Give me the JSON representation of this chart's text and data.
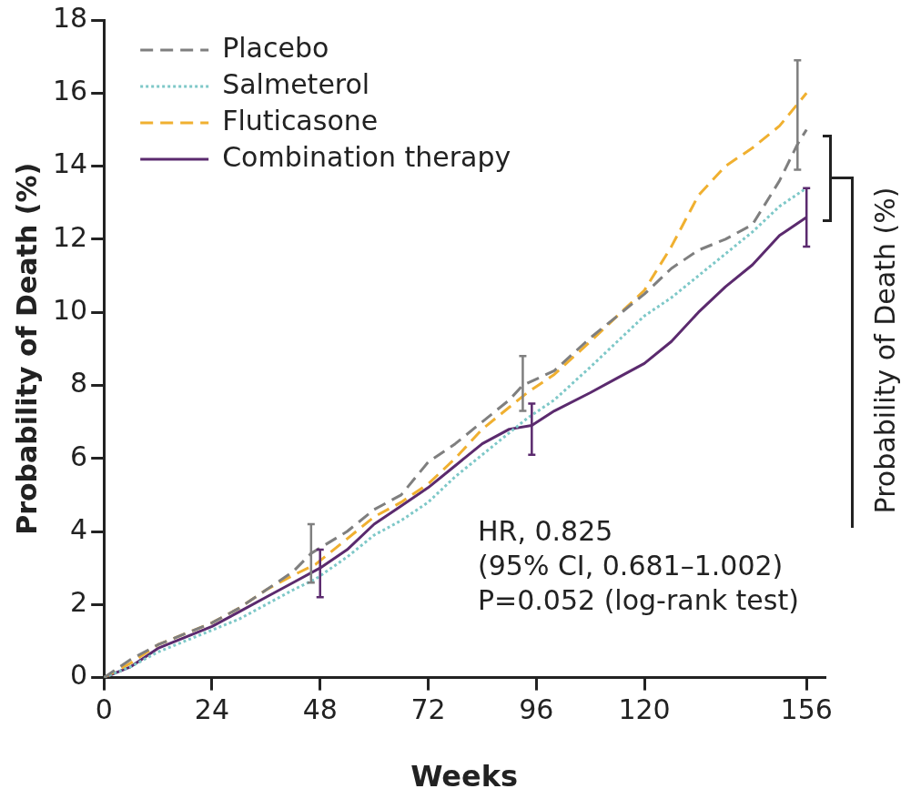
{
  "chart_data": {
    "type": "line",
    "xlabel": "Weeks",
    "ylabel": "Probability of Death (%)",
    "xlim": [
      0,
      160
    ],
    "xticks": [
      0,
      24,
      48,
      72,
      96,
      120,
      156
    ],
    "ylim": [
      0,
      18
    ],
    "yticks": [
      0,
      2,
      4,
      6,
      8,
      10,
      12,
      14,
      16,
      18
    ],
    "grid": false,
    "legend": "top left",
    "marker": "none",
    "annotations": [
      "HR, 0.825",
      "(95% CI, 0.681–1.002)",
      "P=0.052 (log-rank test)",
      "Probability of Death (%)"
    ],
    "series": [
      {
        "name": "Placebo",
        "color": "#7f7f7f",
        "line_style": "dashed",
        "x": [
          0,
          6,
          12,
          18,
          24,
          30,
          36,
          42,
          46,
          54,
          60,
          66,
          72,
          78,
          84,
          90,
          93,
          100,
          108,
          114,
          120,
          126,
          132,
          138,
          144,
          150,
          154,
          156
        ],
        "values": [
          0,
          0.5,
          0.9,
          1.2,
          1.5,
          1.9,
          2.4,
          2.9,
          3.4,
          4.0,
          4.6,
          5.0,
          5.9,
          6.4,
          7.0,
          7.6,
          8.0,
          8.4,
          9.3,
          9.9,
          10.5,
          11.2,
          11.7,
          12.0,
          12.4,
          13.6,
          14.6,
          15.0
        ],
        "errors": [
          null,
          null,
          null,
          null,
          null,
          null,
          null,
          null,
          [
            2.6,
            4.2
          ],
          null,
          null,
          null,
          null,
          null,
          null,
          null,
          [
            7.3,
            8.8
          ],
          null,
          null,
          null,
          null,
          null,
          null,
          null,
          null,
          null,
          [
            13.9,
            16.9
          ],
          null
        ]
      },
      {
        "name": "Salmeterol",
        "color": "#7ec8c8",
        "line_style": "dotted",
        "x": [
          0,
          6,
          12,
          18,
          24,
          30,
          36,
          42,
          47,
          54,
          60,
          66,
          72,
          78,
          84,
          90,
          94,
          100,
          108,
          114,
          120,
          126,
          132,
          138,
          144,
          150,
          156
        ],
        "values": [
          0,
          0.3,
          0.7,
          1.0,
          1.3,
          1.6,
          2.0,
          2.4,
          2.7,
          3.3,
          3.9,
          4.3,
          4.8,
          5.5,
          6.1,
          6.7,
          7.1,
          7.6,
          8.5,
          9.2,
          9.9,
          10.4,
          11.0,
          11.6,
          12.2,
          12.9,
          13.4
        ]
      },
      {
        "name": "Fluticasone",
        "color": "#f0b030",
        "line_style": "dashed",
        "x": [
          0,
          6,
          12,
          18,
          24,
          30,
          36,
          42,
          47,
          54,
          60,
          66,
          72,
          78,
          84,
          90,
          94,
          100,
          108,
          114,
          120,
          126,
          132,
          138,
          144,
          150,
          156
        ],
        "values": [
          0,
          0.4,
          0.9,
          1.2,
          1.5,
          1.9,
          2.4,
          2.8,
          3.1,
          3.8,
          4.4,
          4.8,
          5.3,
          6.0,
          6.8,
          7.4,
          7.8,
          8.3,
          9.2,
          9.9,
          10.6,
          11.8,
          13.2,
          14.0,
          14.5,
          15.1,
          16.0
        ]
      },
      {
        "name": "Combination therapy",
        "color": "#5b2a6e",
        "line_style": "solid",
        "x": [
          0,
          6,
          12,
          18,
          24,
          30,
          36,
          42,
          48,
          54,
          60,
          66,
          72,
          78,
          84,
          90,
          95,
          100,
          108,
          114,
          120,
          126,
          132,
          138,
          144,
          150,
          156
        ],
        "values": [
          0,
          0.3,
          0.8,
          1.1,
          1.4,
          1.8,
          2.2,
          2.6,
          3.0,
          3.5,
          4.2,
          4.7,
          5.2,
          5.8,
          6.4,
          6.8,
          6.9,
          7.3,
          7.8,
          8.2,
          8.6,
          9.2,
          10.0,
          10.7,
          11.3,
          12.1,
          12.6
        ],
        "errors": [
          null,
          null,
          null,
          null,
          null,
          null,
          null,
          null,
          [
            2.2,
            3.5
          ],
          null,
          null,
          null,
          null,
          null,
          null,
          null,
          [
            6.1,
            7.5
          ],
          null,
          null,
          null,
          null,
          null,
          null,
          null,
          null,
          null,
          [
            11.8,
            13.4
          ]
        ]
      }
    ]
  }
}
